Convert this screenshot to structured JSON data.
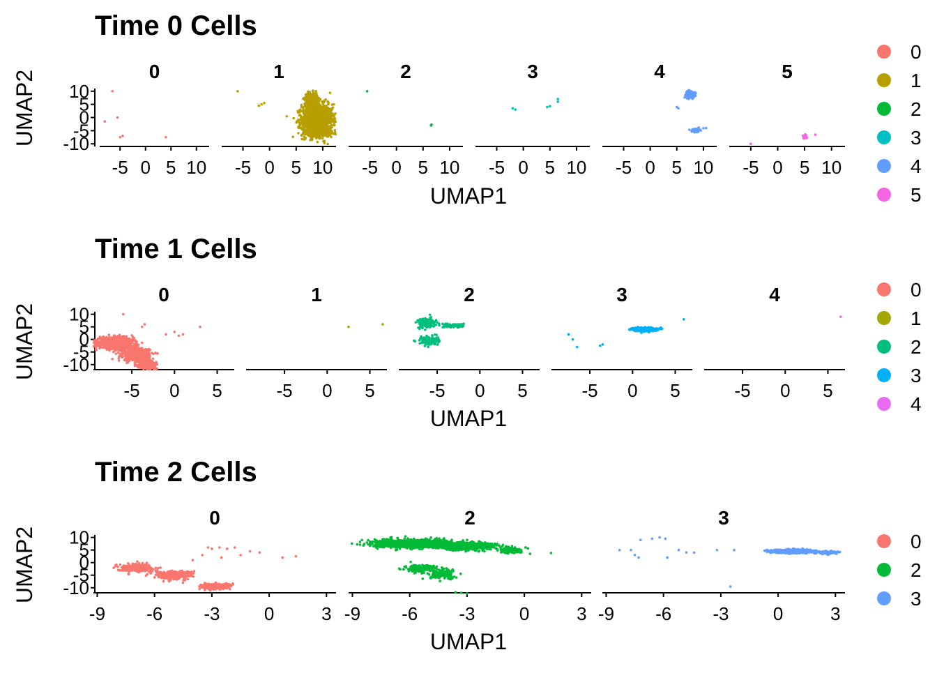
{
  "chart_data": [
    {
      "type": "scatter",
      "title": "Time 0 Cells",
      "xlabel": "UMAP1",
      "ylabel": "UMAP2",
      "xlim": [
        -9,
        12.5
      ],
      "ylim": [
        -11,
        11
      ],
      "xticks": [
        -5,
        0,
        5,
        10
      ],
      "xtick_labels": [
        "-5",
        "0",
        "5",
        "10"
      ],
      "yticks": [
        10,
        5,
        0,
        -5,
        -10
      ],
      "ytick_labels": [
        "10",
        "5",
        "0",
        "-5",
        "-10"
      ],
      "legend": {
        "position": "right",
        "entries": [
          {
            "label": "0",
            "color": "#F8766D"
          },
          {
            "label": "1",
            "color": "#B79F00"
          },
          {
            "label": "2",
            "color": "#00BA38"
          },
          {
            "label": "3",
            "color": "#00BFC4"
          },
          {
            "label": "4",
            "color": "#619CFF"
          },
          {
            "label": "5",
            "color": "#F564E3"
          }
        ]
      },
      "facets": [
        {
          "label": "0",
          "color": "#F8766D",
          "points": [
            [
              -6.5,
              10
            ],
            [
              -8,
              -1.5
            ],
            [
              -5.5,
              0
            ],
            [
              -4.5,
              -7
            ],
            [
              -5,
              -7.5
            ],
            [
              4,
              -7.5
            ]
          ]
        },
        {
          "label": "1",
          "color": "#B79F00",
          "points": [
            [
              -6,
              10
            ],
            [
              -1.5,
              5
            ],
            [
              -1,
              5.5
            ],
            [
              -2,
              4.5
            ]
          ],
          "blobs": [
            {
              "cx": 9,
              "cy": -1,
              "sx": 2.6,
              "sy": 5.5,
              "n": 1400
            },
            {
              "cx": 7.8,
              "cy": 7,
              "sx": 1.1,
              "sy": 2.2,
              "n": 300
            },
            {
              "cx": 9.2,
              "cy": -5.8,
              "sx": 2.3,
              "sy": 1.0,
              "n": 300
            }
          ]
        },
        {
          "label": "2",
          "color": "#00BA38",
          "points": [
            [
              -5.5,
              10
            ],
            [
              6.5,
              -3
            ],
            [
              6.6,
              -2.7
            ]
          ]
        },
        {
          "label": "3",
          "color": "#00BFC4",
          "points": [
            [
              -2,
              3.5
            ],
            [
              -1.5,
              3
            ],
            [
              4.5,
              4
            ],
            [
              5,
              4.3
            ],
            [
              6.5,
              6
            ],
            [
              6.5,
              7
            ]
          ]
        },
        {
          "label": "4",
          "color": "#619CFF",
          "points": [
            [
              5,
              4
            ],
            [
              5.3,
              3.5
            ],
            [
              9,
              -5
            ],
            [
              10.5,
              -4
            ]
          ],
          "blobs": [
            {
              "cx": 7.5,
              "cy": 8.8,
              "sx": 0.7,
              "sy": 1.2,
              "n": 250
            },
            {
              "cx": 8.6,
              "cy": -4.8,
              "sx": 0.7,
              "sy": 0.6,
              "n": 80
            }
          ]
        },
        {
          "label": "5",
          "color": "#F564E3",
          "points": [
            [
              -5,
              -10
            ],
            [
              7,
              -6.5
            ]
          ],
          "blobs": [
            {
              "cx": 5,
              "cy": -7.5,
              "sx": 0.35,
              "sy": 0.7,
              "n": 50
            }
          ]
        }
      ]
    },
    {
      "type": "scatter",
      "title": "Time 1 Cells",
      "xlabel": "UMAP1",
      "ylabel": "UMAP2",
      "xlim": [
        -9.5,
        7
      ],
      "ylim": [
        -12,
        11
      ],
      "xticks": [
        -5,
        0,
        5
      ],
      "xtick_labels": [
        "-5",
        "0",
        "5"
      ],
      "yticks": [
        10,
        5,
        0,
        -5,
        -10
      ],
      "ytick_labels": [
        "10",
        "5",
        "0",
        "-5",
        "-10"
      ],
      "legend": {
        "position": "right",
        "entries": [
          {
            "label": "0",
            "color": "#F8766D"
          },
          {
            "label": "1",
            "color": "#A3A500"
          },
          {
            "label": "2",
            "color": "#00BF7D"
          },
          {
            "label": "3",
            "color": "#00B0F6"
          },
          {
            "label": "4",
            "color": "#E76BF3"
          }
        ]
      },
      "facets": [
        {
          "label": "0",
          "color": "#F8766D",
          "points": [
            [
              -6,
              10
            ],
            [
              -3.5,
              6
            ],
            [
              -3.8,
              5
            ],
            [
              0,
              3
            ],
            [
              1,
              2
            ],
            [
              0.5,
              1.5
            ],
            [
              3,
              5
            ],
            [
              -1,
              2
            ]
          ],
          "blobs": [
            {
              "cx": -6.8,
              "cy": -1.5,
              "sx": 1.8,
              "sy": 2.0,
              "n": 1100
            },
            {
              "cx": -4.5,
              "cy": -6,
              "sx": 1.4,
              "sy": 2.2,
              "n": 700
            },
            {
              "cx": -3.2,
              "cy": -10,
              "sx": 0.9,
              "sy": 1.2,
              "n": 300
            }
          ]
        },
        {
          "label": "1",
          "color": "#A3A500",
          "points": [
            [
              2.5,
              5
            ],
            [
              6.5,
              6
            ]
          ]
        },
        {
          "label": "2",
          "color": "#00BF7D",
          "points": [],
          "blobs": [
            {
              "cx": -6.2,
              "cy": 6.5,
              "sx": 0.9,
              "sy": 1.8,
              "n": 160
            },
            {
              "cx": -6,
              "cy": -0.5,
              "sx": 1.0,
              "sy": 1.6,
              "n": 140
            },
            {
              "cx": -3,
              "cy": 5.5,
              "sx": 1.0,
              "sy": 0.6,
              "n": 120
            }
          ]
        },
        {
          "label": "3",
          "color": "#00B0F6",
          "points": [
            [
              -7.5,
              2
            ],
            [
              -7,
              0
            ],
            [
              -6.5,
              -3
            ],
            [
              -3.5,
              -2
            ],
            [
              -3.8,
              -2.5
            ],
            [
              6,
              8
            ]
          ],
          "blobs": [
            {
              "cx": 1.5,
              "cy": 4,
              "sx": 1.2,
              "sy": 0.7,
              "n": 350
            }
          ]
        },
        {
          "label": "4",
          "color": "#E76BF3",
          "points": [
            [
              6.5,
              9
            ]
          ]
        }
      ]
    },
    {
      "type": "scatter",
      "title": "Time 2 Cells",
      "xlabel": "UMAP1",
      "ylabel": "UMAP2",
      "xlim": [
        -9.2,
        3.5
      ],
      "ylim": [
        -12,
        11
      ],
      "xticks": [
        -9,
        -6,
        -3,
        0,
        3
      ],
      "xtick_labels": [
        "-9",
        "-6",
        "-3",
        "0",
        "3"
      ],
      "yticks": [
        10,
        5,
        0,
        -5,
        -10
      ],
      "ytick_labels": [
        "10",
        "5",
        "0",
        "-5",
        "-10"
      ],
      "legend": {
        "position": "right",
        "entries": [
          {
            "label": "0",
            "color": "#F8766D"
          },
          {
            "label": "2",
            "color": "#00BA38"
          },
          {
            "label": "3",
            "color": "#619CFF"
          }
        ]
      },
      "facets": [
        {
          "label": "0",
          "color": "#F8766D",
          "points": [
            [
              -3.2,
              6
            ],
            [
              -3,
              5.5
            ],
            [
              -2.6,
              6
            ],
            [
              -2.2,
              5.5
            ],
            [
              -1.8,
              6
            ],
            [
              -1,
              4.5
            ],
            [
              -0.5,
              4
            ],
            [
              0.7,
              2
            ],
            [
              1.4,
              2.5
            ],
            [
              -1.5,
              3
            ],
            [
              -2.5,
              2
            ],
            [
              -3.5,
              3
            ],
            [
              -4,
              1
            ]
          ],
          "blobs": [
            {
              "cx": -7,
              "cy": -2,
              "sx": 0.9,
              "sy": 1.5,
              "n": 220
            },
            {
              "cx": -5,
              "cy": -5,
              "sx": 0.9,
              "sy": 1.6,
              "n": 260
            },
            {
              "cx": -2.8,
              "cy": -9.5,
              "sx": 0.7,
              "sy": 1.0,
              "n": 350
            }
          ]
        },
        {
          "label": "2",
          "color": "#00BA38",
          "points": [
            [
              -3.3,
              -12
            ],
            [
              -3.6,
              -11.8
            ],
            [
              -3,
              -12.2
            ],
            [
              0.3,
              3.5
            ],
            [
              1.4,
              3.8
            ],
            [
              -0.2,
              4
            ]
          ],
          "blobs": [
            {
              "cx": -5.8,
              "cy": 7.5,
              "sx": 1.8,
              "sy": 1.4,
              "n": 1200
            },
            {
              "cx": -3,
              "cy": 6.5,
              "sx": 1.4,
              "sy": 1.3,
              "n": 700
            },
            {
              "cx": -0.7,
              "cy": 4.8,
              "sx": 0.5,
              "sy": 0.9,
              "n": 150
            },
            {
              "cx": -5.5,
              "cy": -2.5,
              "sx": 0.7,
              "sy": 1.3,
              "n": 160
            },
            {
              "cx": -4.2,
              "cy": -4.5,
              "sx": 0.7,
              "sy": 1.8,
              "n": 160
            }
          ]
        },
        {
          "label": "3",
          "color": "#619CFF",
          "points": [
            [
              -8.3,
              5
            ],
            [
              -7.7,
              5
            ],
            [
              -7.5,
              3
            ],
            [
              -7.3,
              2
            ],
            [
              -7.2,
              9
            ],
            [
              -6.6,
              9.5
            ],
            [
              -6.2,
              10
            ],
            [
              -5.9,
              9.5
            ],
            [
              -5.8,
              2
            ],
            [
              -5.2,
              5
            ],
            [
              -4.8,
              4
            ],
            [
              -4.4,
              4
            ],
            [
              -3.2,
              5
            ],
            [
              -2.5,
              -9.5
            ],
            [
              -2.3,
              5
            ]
          ],
          "blobs": [
            {
              "cx": 0.8,
              "cy": 4.5,
              "sx": 1.1,
              "sy": 0.6,
              "n": 700
            },
            {
              "cx": 2.6,
              "cy": 4.0,
              "sx": 0.5,
              "sy": 0.5,
              "n": 120
            }
          ]
        }
      ]
    }
  ]
}
